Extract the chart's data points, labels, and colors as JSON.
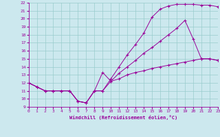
{
  "xlabel": "Windchill (Refroidissement éolien,°C)",
  "bg_color": "#cce8ee",
  "line_color": "#990099",
  "grid_color": "#99cccc",
  "xlim": [
    0,
    23
  ],
  "ylim": [
    9,
    22
  ],
  "xticks": [
    0,
    1,
    2,
    3,
    4,
    5,
    6,
    7,
    8,
    9,
    10,
    11,
    12,
    13,
    14,
    15,
    16,
    17,
    18,
    19,
    20,
    21,
    22,
    23
  ],
  "yticks": [
    9,
    10,
    11,
    12,
    13,
    14,
    15,
    16,
    17,
    18,
    19,
    20,
    21,
    22
  ],
  "curve1_x": [
    0,
    1,
    2,
    3,
    4,
    5,
    6,
    7,
    8,
    9,
    10,
    11,
    12,
    13,
    14,
    15,
    16,
    17,
    18,
    19,
    20,
    21,
    22,
    23
  ],
  "curve1_y": [
    12,
    11.5,
    11,
    11,
    11,
    11,
    9.7,
    9.5,
    11,
    13.3,
    12.2,
    12.5,
    13.0,
    13.3,
    13.5,
    13.8,
    14.0,
    14.2,
    14.4,
    14.6,
    14.8,
    15.0,
    15.0,
    14.8
  ],
  "curve2_x": [
    0,
    1,
    2,
    3,
    4,
    5,
    6,
    7,
    8,
    9,
    10,
    11,
    12,
    13,
    14,
    15,
    16,
    17,
    18,
    19,
    20,
    21,
    22,
    23
  ],
  "curve2_y": [
    12,
    11.5,
    11,
    11,
    11,
    11,
    9.7,
    9.5,
    11,
    11,
    12.2,
    13.2,
    14.0,
    14.8,
    15.7,
    16.4,
    17.2,
    18.0,
    18.8,
    19.8,
    17.5,
    15.0,
    15.0,
    14.8
  ],
  "curve3_x": [
    0,
    1,
    2,
    3,
    4,
    5,
    6,
    7,
    8,
    9,
    10,
    11,
    12,
    13,
    14,
    15,
    16,
    17,
    18,
    19,
    20,
    21,
    22,
    23
  ],
  "curve3_y": [
    12,
    11.5,
    11,
    11,
    11,
    11,
    9.7,
    9.5,
    11,
    11,
    12.5,
    14.0,
    15.5,
    16.8,
    18.2,
    20.2,
    21.2,
    21.6,
    21.8,
    21.8,
    21.8,
    21.7,
    21.7,
    21.5
  ]
}
